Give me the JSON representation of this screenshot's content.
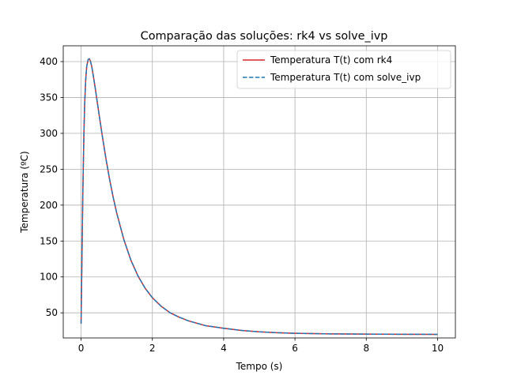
{
  "chart_data": {
    "type": "line",
    "title": "Comparação das soluções: rk4 vs solve_ivp",
    "xlabel": "Tempo (s)",
    "ylabel": "Temperatura (ºC)",
    "xlim": [
      -0.5,
      10.5
    ],
    "ylim": [
      15,
      422
    ],
    "xticks": [
      0,
      2,
      4,
      6,
      8,
      10
    ],
    "yticks": [
      50,
      100,
      150,
      200,
      250,
      300,
      350,
      400
    ],
    "grid": true,
    "legend_position": "upper right",
    "series": [
      {
        "name": "Temperatura T(t) com rk4",
        "color": "#d62728",
        "style": "solid",
        "x": [
          0,
          0.02,
          0.05,
          0.08,
          0.1,
          0.13,
          0.16,
          0.2,
          0.23,
          0.26,
          0.3,
          0.35,
          0.4,
          0.5,
          0.6,
          0.7,
          0.8,
          0.9,
          1.0,
          1.2,
          1.4,
          1.6,
          1.8,
          2.0,
          2.25,
          2.5,
          2.75,
          3.0,
          3.5,
          4.0,
          4.5,
          5.0,
          5.5,
          6.0,
          7.0,
          8.0,
          9.0,
          10.0
        ],
        "y": [
          35,
          110,
          220,
          300,
          340,
          375,
          394,
          403,
          404,
          401,
          393,
          378,
          362,
          328,
          295,
          264,
          236,
          211,
          189,
          152,
          123,
          101,
          84,
          71,
          59,
          50,
          44,
          39,
          32,
          28.5,
          25.5,
          23.5,
          22.3,
          21.5,
          20.7,
          20.3,
          20.1,
          20.0
        ]
      },
      {
        "name": "Temperatura T(t) com solve_ivp",
        "color": "#1f77b4",
        "style": "dashed",
        "x": [
          0,
          0.02,
          0.05,
          0.08,
          0.1,
          0.13,
          0.16,
          0.2,
          0.23,
          0.26,
          0.3,
          0.35,
          0.4,
          0.5,
          0.6,
          0.7,
          0.8,
          0.9,
          1.0,
          1.2,
          1.4,
          1.6,
          1.8,
          2.0,
          2.25,
          2.5,
          2.75,
          3.0,
          3.5,
          4.0,
          4.5,
          5.0,
          5.5,
          6.0,
          7.0,
          8.0,
          9.0,
          10.0
        ],
        "y": [
          35,
          110,
          220,
          300,
          340,
          375,
          394,
          403,
          404,
          401,
          393,
          378,
          362,
          328,
          295,
          264,
          236,
          211,
          189,
          152,
          123,
          101,
          84,
          71,
          59,
          50,
          44,
          39,
          32,
          28.5,
          25.5,
          23.5,
          22.3,
          21.5,
          20.7,
          20.3,
          20.1,
          20.0
        ]
      }
    ]
  }
}
